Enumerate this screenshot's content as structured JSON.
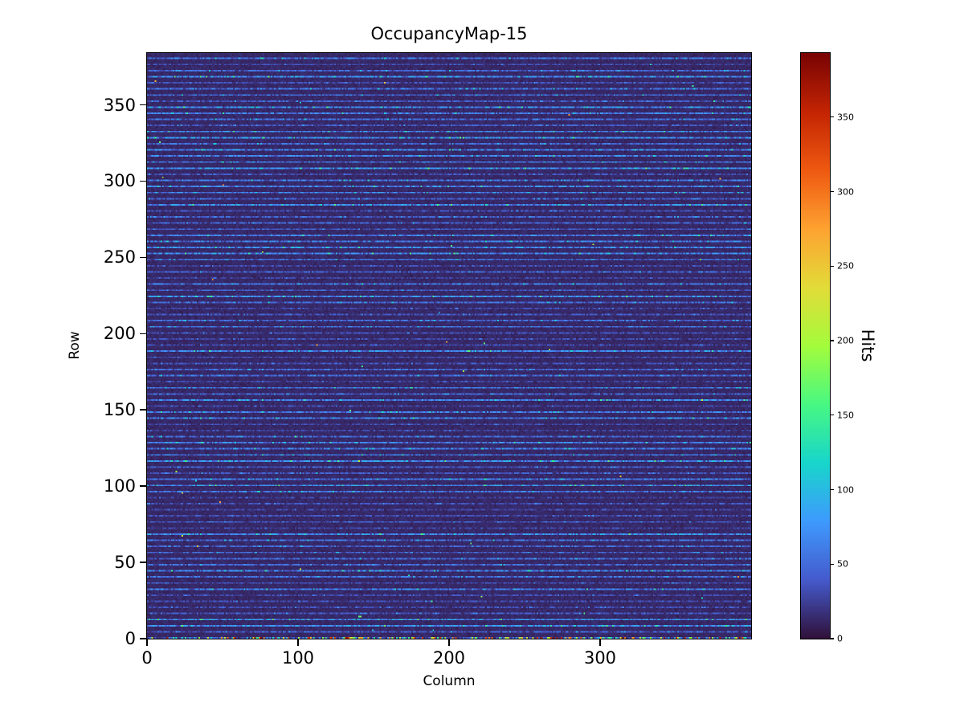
{
  "figure": {
    "background": "#ffffff",
    "text_color": "#000000"
  },
  "chart_data": {
    "type": "heatmap",
    "title": "OccupancyMap-15",
    "xlabel": "Column",
    "ylabel": "Row",
    "colorbar_label": "Hits",
    "x_range": [
      0,
      400
    ],
    "y_range": [
      0,
      384
    ],
    "x_ticks": [
      0,
      100,
      200,
      300
    ],
    "y_ticks": [
      0,
      50,
      100,
      150,
      200,
      250,
      300,
      350
    ],
    "colorbar_ticks": [
      0,
      50,
      100,
      150,
      200,
      250,
      300,
      350
    ],
    "value_range": [
      0,
      393
    ],
    "colormap": "turbo",
    "grid": {
      "n_cols": 400,
      "n_rows": 384
    },
    "pattern": {
      "description": "Predominantly low-occupancy dark-blue background (~5-20 hits) with brighter dashed horizontal stripes (~30-90 hits) repeating every ~4 rows; row 0 along the bottom edge contains scattered hot pixels ranging up to ~390 hits (cyan/green/yellow/orange/red dots); rare isolated hot pixels elsewhere",
      "background_mean": 12,
      "background_noise": 8,
      "stripe_period": 4,
      "stripe_mean": 50,
      "hot_row": 0,
      "hot_fraction": 0.45,
      "hot_max": 390,
      "sparse_hot_fraction": 0.0004,
      "seed": 15
    },
    "legend_position": "right-colorbar",
    "grid_lines": false
  }
}
